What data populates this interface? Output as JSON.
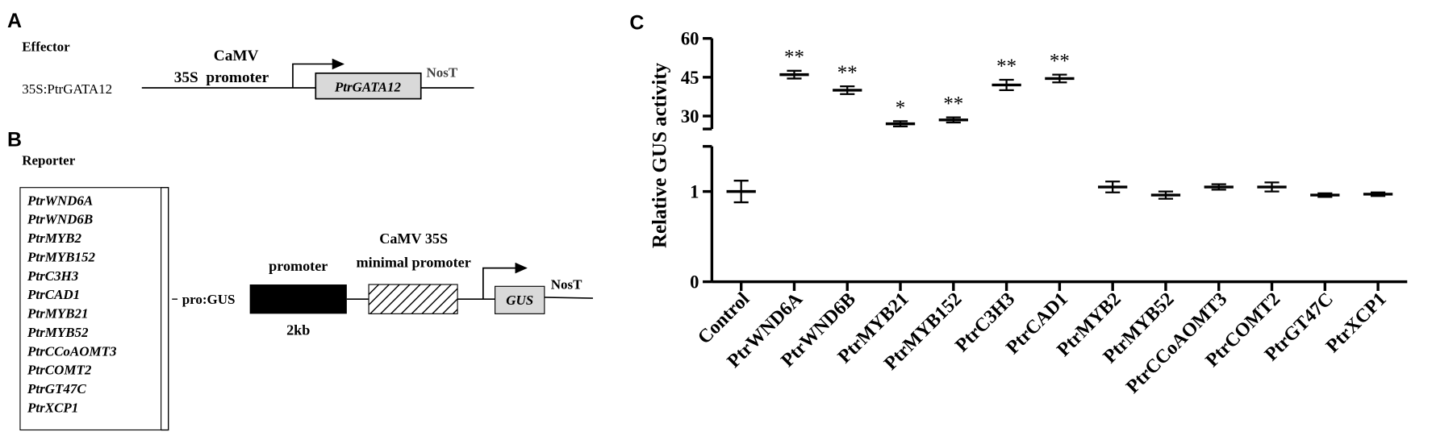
{
  "panel_a": {
    "label": "A",
    "title": "Effector",
    "construct": "35S:PtrGATA12",
    "promoter_line1": "CaMV",
    "promoter_line2": "35S  promoter",
    "gene": "PtrGATA12",
    "terminator": "NosT"
  },
  "panel_b": {
    "label": "B",
    "title": "Reporter",
    "genes": [
      "PtrWND6A",
      "PtrWND6B",
      "PtrMYB2",
      "PtrMYB152",
      "PtrC3H3",
      "PtrCAD1",
      "PtrMYB21",
      "PtrMYB52",
      "PtrCCoAOMT3",
      "PtrCOMT2",
      "PtrGT47C",
      "PtrXCP1"
    ],
    "construct": "pro:GUS",
    "promoter": "promoter",
    "promoter_length": "2kb",
    "minimal_promoter_line1": "CaMV 35S",
    "minimal_promoter_line2": "minimal promoter",
    "reporter_gene": "GUS",
    "terminator": "NosT"
  },
  "chart_data": {
    "type": "errorbar",
    "panel_label": "C",
    "y_label": "Relative GUS activity",
    "categories": [
      "Control",
      "PtrWND6A",
      "PtrWND6B",
      "PtrMYB21",
      "PtrMYB152",
      "PtrC3H3",
      "PtrCAD1",
      "PtrMYB2",
      "PtrMYB52",
      "PtrCCoAOMT3",
      "PtrCOMT2",
      "PtrGT47C",
      "PtrXCP1"
    ],
    "values": [
      1.0,
      46,
      40,
      27,
      28.5,
      42,
      44.5,
      1.05,
      0.96,
      1.05,
      1.05,
      0.96,
      0.97
    ],
    "errors": [
      0.12,
      1.5,
      1.5,
      1,
      1,
      2,
      1.5,
      0.06,
      0.04,
      0.03,
      0.05,
      0.02,
      0.02
    ],
    "annotations": [
      null,
      "**",
      "**",
      "*",
      "**",
      "**",
      "**",
      null,
      null,
      null,
      null,
      null,
      null
    ],
    "y_segments": [
      {
        "ylim": [
          0,
          1.5
        ],
        "yticks": [
          0,
          1
        ]
      },
      {
        "ylim": [
          25,
          60
        ],
        "yticks": [
          30,
          45,
          60
        ]
      }
    ],
    "color": "#000000"
  }
}
